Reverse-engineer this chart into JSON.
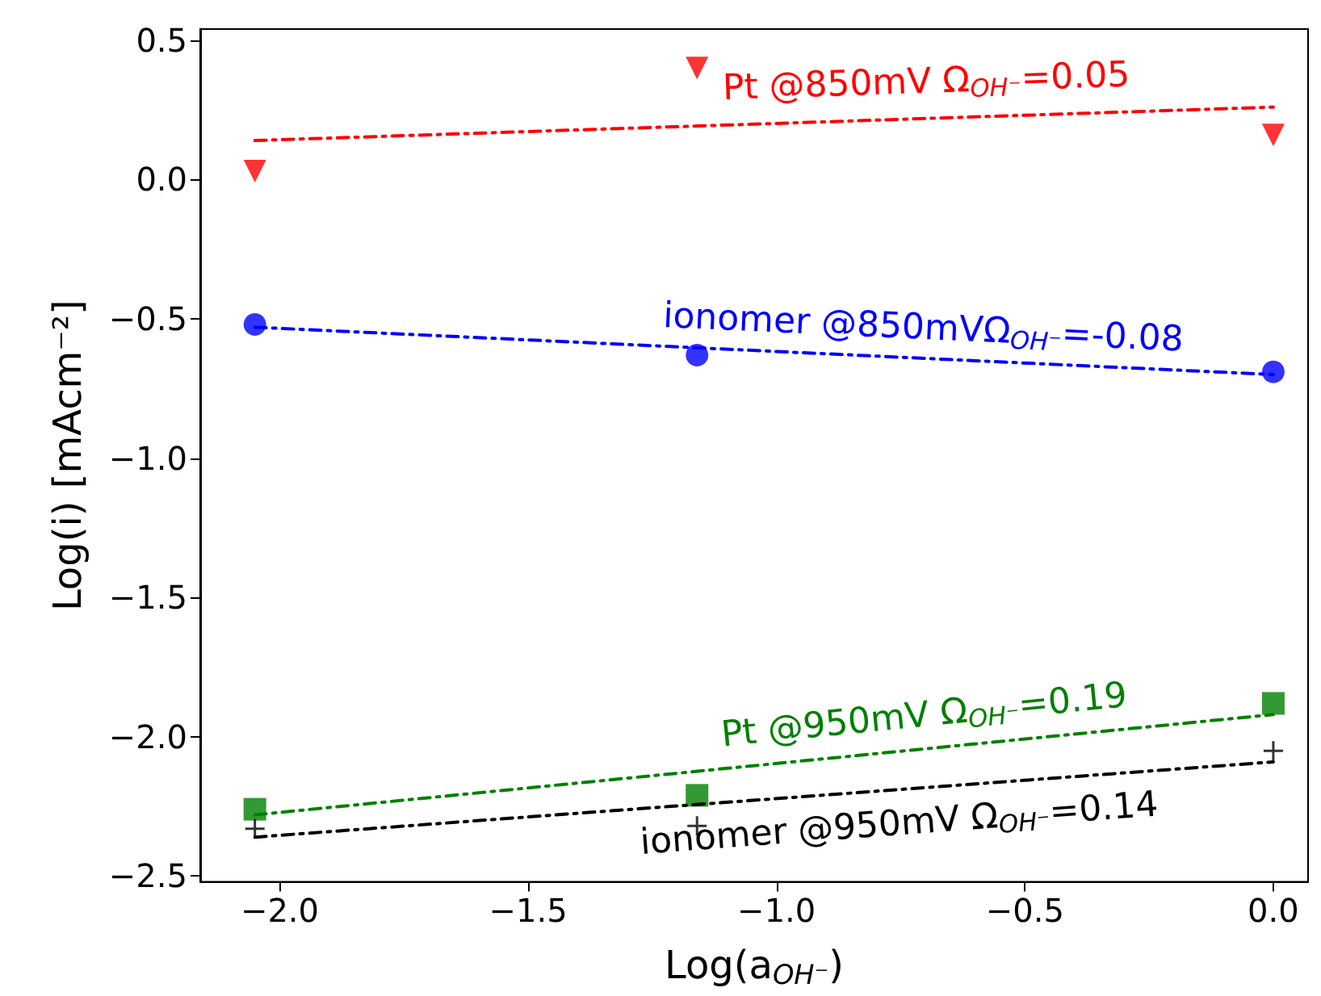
{
  "chart_data": {
    "type": "scatter",
    "xlabel": "Log(a$_{OH⁻}$)",
    "ylabel": "Log(i) [mAcm⁻²]",
    "xlim": [
      -2.16,
      0.07
    ],
    "xticks": [
      {
        "value": -2.0,
        "label": "−2.0"
      },
      {
        "value": -1.5,
        "label": "−1.5"
      },
      {
        "value": -1.0,
        "label": "−1.0"
      },
      {
        "value": -0.5,
        "label": "−0.5"
      },
      {
        "value": 0.0,
        "label": "0.0"
      }
    ],
    "ylim": [
      -2.52,
      0.54
    ],
    "yticks": [
      {
        "value": -2.5,
        "label": "−2.5"
      },
      {
        "value": -2.0,
        "label": "−2.0"
      },
      {
        "value": -1.5,
        "label": "−1.5"
      },
      {
        "value": -1.0,
        "label": "−1.0"
      },
      {
        "value": -0.5,
        "label": "−0.5"
      },
      {
        "value": 0.0,
        "label": "0.0"
      },
      {
        "value": 0.5,
        "label": "0.5"
      }
    ],
    "grid": false,
    "series": [
      {
        "type": "line",
        "color": "#ff0000",
        "line_style": "dashed",
        "marker": "none",
        "x": [
          -2.05,
          0.0
        ],
        "values": [
          0.14,
          0.26
        ]
      },
      {
        "type": "line",
        "color": "#0000ff",
        "line_style": "dashed",
        "marker": "none",
        "x": [
          -2.05,
          0.0
        ],
        "values": [
          -0.53,
          -0.7
        ]
      },
      {
        "type": "line",
        "color": "#008000",
        "line_style": "dashed",
        "marker": "none",
        "x": [
          -2.05,
          0.0
        ],
        "values": [
          -2.28,
          -1.92
        ]
      },
      {
        "type": "line",
        "color": "#000000",
        "line_style": "dashed",
        "marker": "none",
        "x": [
          -2.05,
          0.0
        ],
        "values": [
          -2.36,
          -2.09
        ]
      },
      {
        "color": "#ff0000",
        "marker": "triangle",
        "x": [
          -2.05,
          -1.16,
          0.0
        ],
        "values": [
          0.03,
          0.4,
          0.16
        ]
      },
      {
        "color": "#0000ff",
        "marker": "circle",
        "x": [
          -2.05,
          -1.16,
          0.0
        ],
        "values": [
          -0.52,
          -0.63,
          -0.69
        ]
      },
      {
        "color": "#008000",
        "marker": "square",
        "x": [
          -2.05,
          -1.16,
          0.0
        ],
        "values": [
          -2.26,
          -2.21,
          -1.88
        ]
      },
      {
        "color": "#000000",
        "marker": "cross",
        "x": [
          -2.05,
          -1.16,
          0.0
        ],
        "values": [
          -2.33,
          -2.32,
          -2.05
        ]
      }
    ],
    "annotations": [
      "Pt @850mV Ω$_{OH⁻}$=0.05",
      "ionomer @850mVΩ$_{OH⁻}$=-0.08",
      "Pt @950mV Ω$_{OH⁻}$=0.19",
      "ionomer @950mV Ω$_{OH⁻}$=0.14"
    ]
  }
}
